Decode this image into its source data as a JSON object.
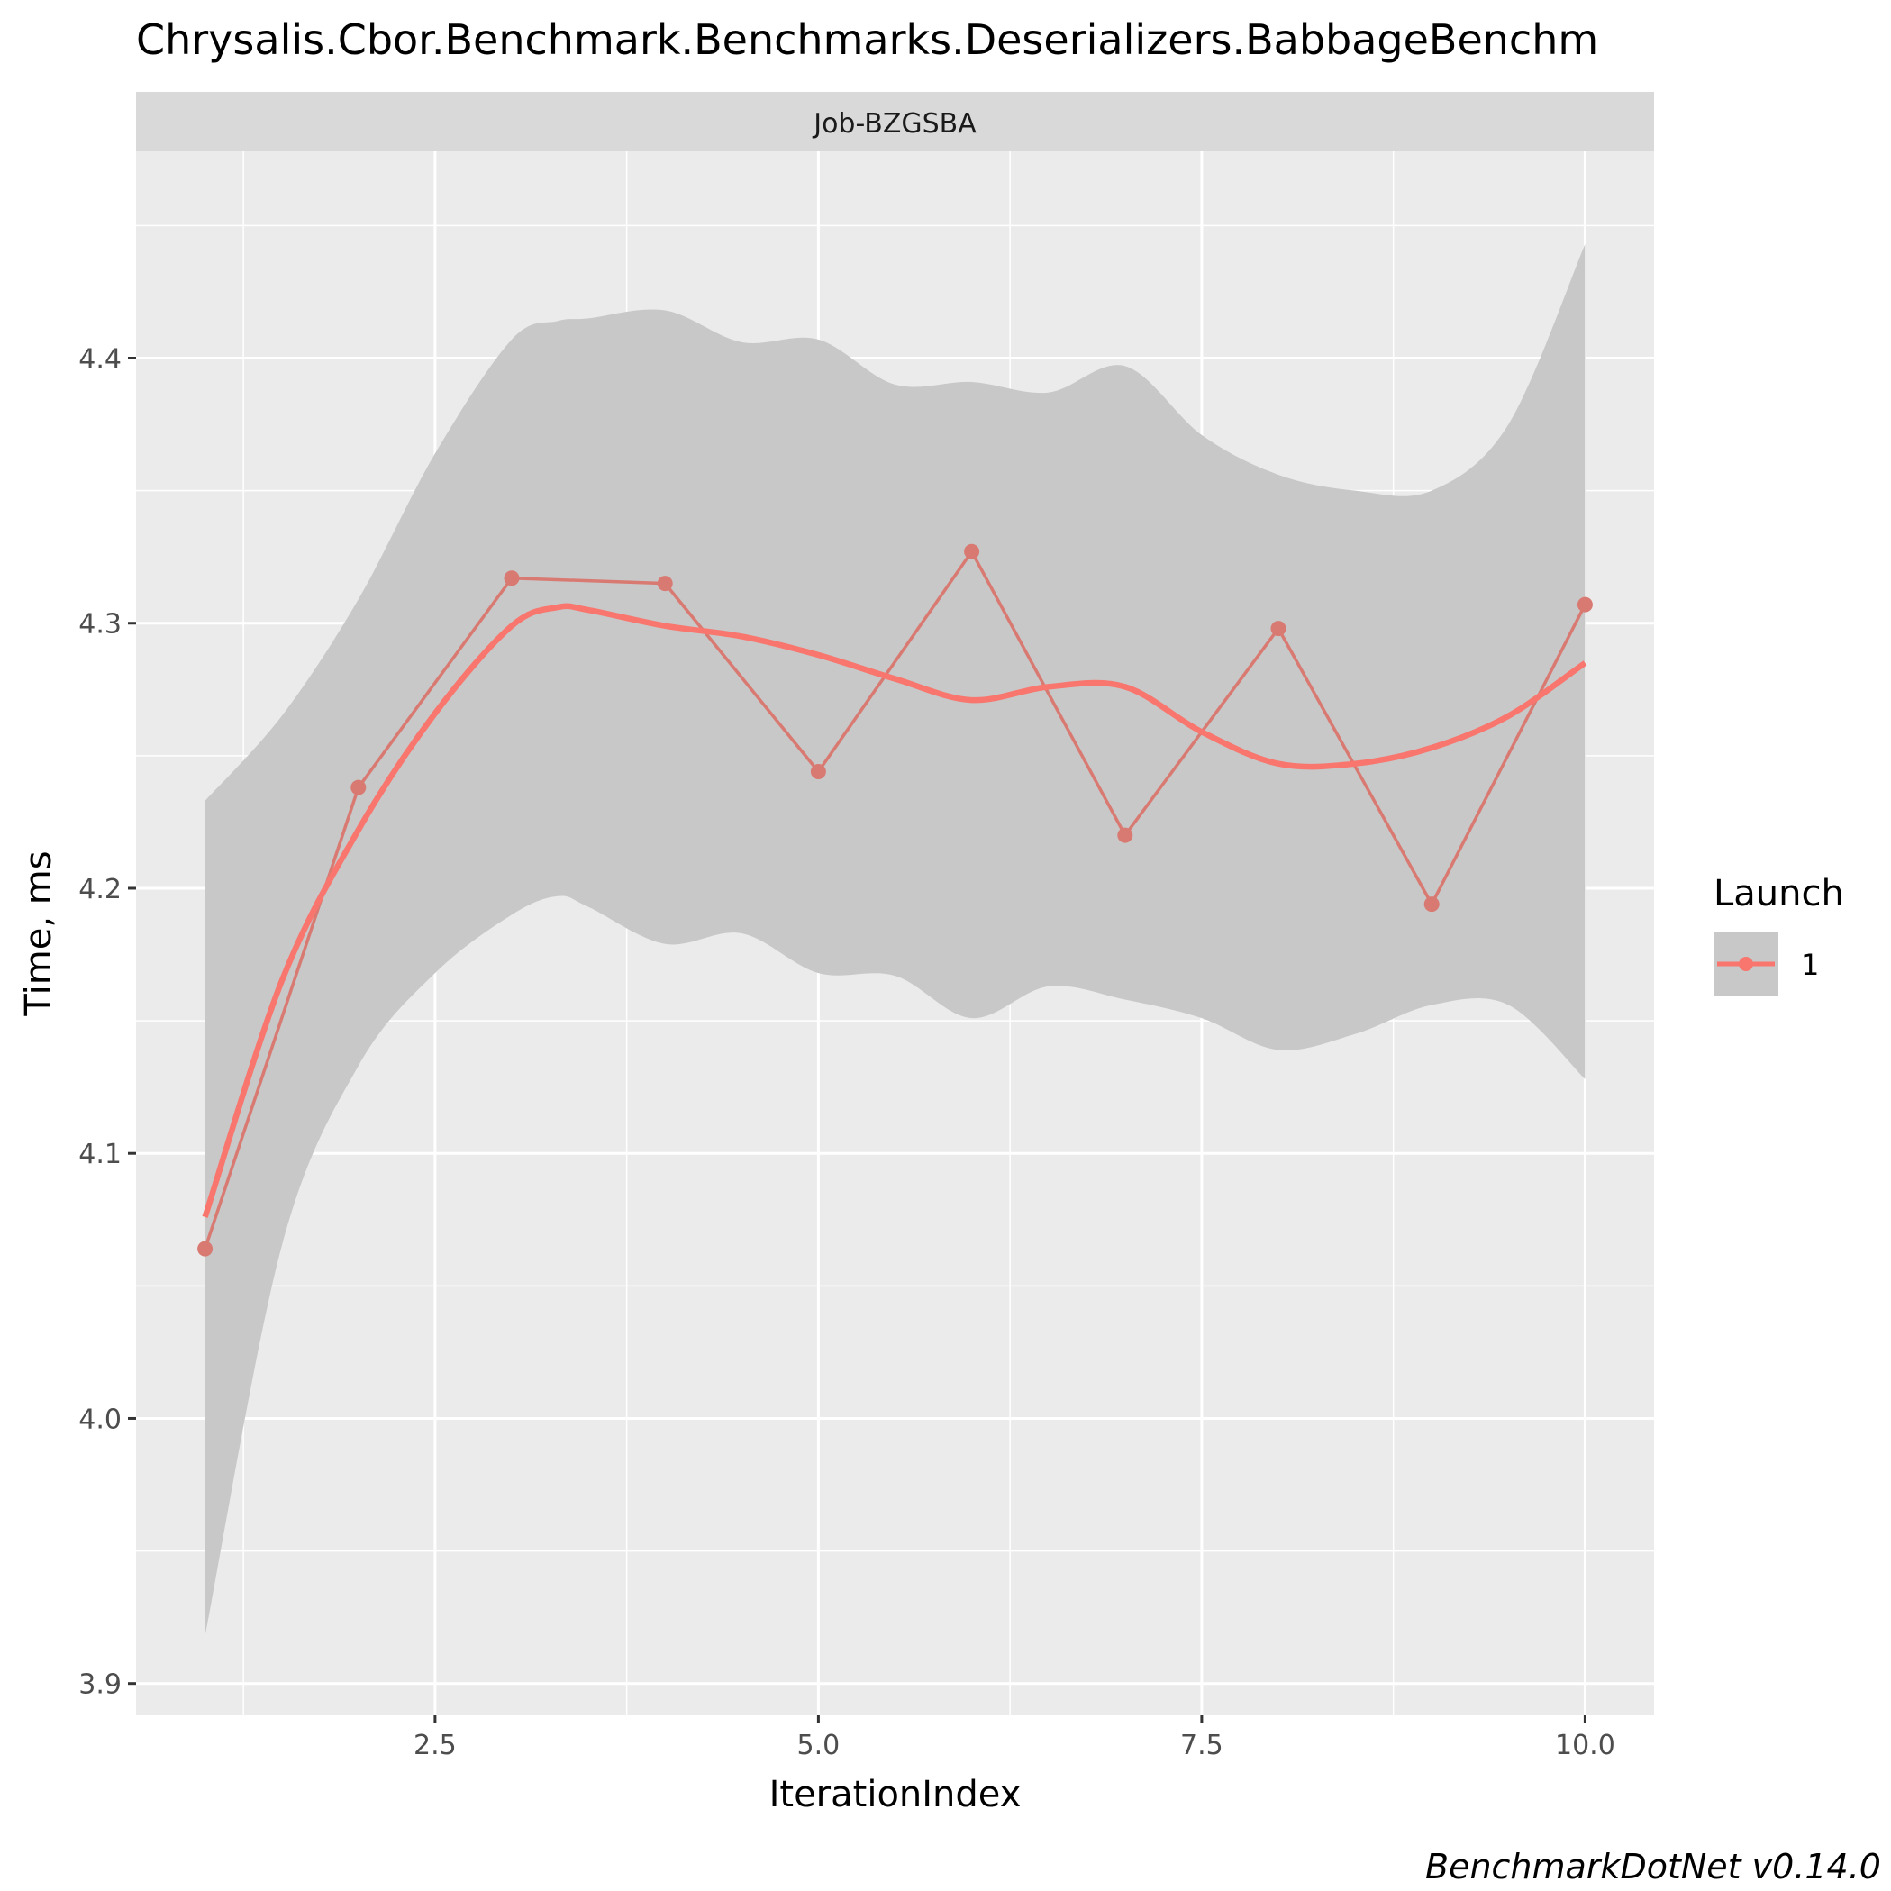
{
  "chart_data": {
    "type": "line",
    "title": "Chrysalis.Cbor.Benchmark.Benchmarks.Deserializers.BabbageBenchm",
    "facet_label": "Job-BZGSBA",
    "xlabel": "IterationIndex",
    "ylabel": "Time, ms",
    "xlim": [
      0.55,
      10.45
    ],
    "ylim": [
      3.888,
      4.478
    ],
    "x_ticks": [
      2.5,
      5.0,
      7.5,
      10.0
    ],
    "x_tick_labels": [
      "2.5",
      "5.0",
      "7.5",
      "10.0"
    ],
    "y_ticks": [
      3.9,
      4.0,
      4.1,
      4.2,
      4.3,
      4.4
    ],
    "y_tick_labels": [
      "3.9",
      "4.0",
      "4.1",
      "4.2",
      "4.3",
      "4.4"
    ],
    "grid": true,
    "legend": {
      "title": "Launch",
      "position": "right",
      "entries": [
        "1"
      ]
    },
    "series": [
      {
        "name": "1",
        "color": "#F8766D",
        "x": [
          1,
          2,
          3,
          4,
          5,
          6,
          7,
          8,
          9,
          10
        ],
        "y": [
          4.064,
          4.238,
          4.317,
          4.315,
          4.244,
          4.327,
          4.22,
          4.298,
          4.194,
          4.307
        ]
      }
    ],
    "smooth": {
      "color": "#F8766D",
      "x": [
        1.0,
        1.5,
        2.0,
        2.5,
        3.0,
        3.3,
        3.5,
        4.0,
        4.5,
        5.0,
        5.5,
        6.0,
        6.5,
        7.0,
        7.5,
        8.0,
        8.5,
        9.0,
        9.5,
        10.0
      ],
      "y": [
        4.076,
        4.165,
        4.222,
        4.266,
        4.299,
        4.306,
        4.305,
        4.299,
        4.295,
        4.288,
        4.279,
        4.271,
        4.276,
        4.276,
        4.259,
        4.247,
        4.247,
        4.253,
        4.265,
        4.285
      ],
      "ci_upper": [
        4.233,
        4.265,
        4.309,
        4.364,
        4.407,
        4.414,
        4.415,
        4.418,
        4.406,
        4.407,
        4.39,
        4.391,
        4.387,
        4.397,
        4.371,
        4.356,
        4.35,
        4.35,
        4.375,
        4.443
      ],
      "ci_lower": [
        3.918,
        4.065,
        4.133,
        4.168,
        4.19,
        4.197,
        4.193,
        4.179,
        4.183,
        4.168,
        4.167,
        4.151,
        4.163,
        4.158,
        4.151,
        4.139,
        4.145,
        4.156,
        4.156,
        4.128
      ]
    }
  },
  "caption": "BenchmarkDotNet v0.14.0"
}
